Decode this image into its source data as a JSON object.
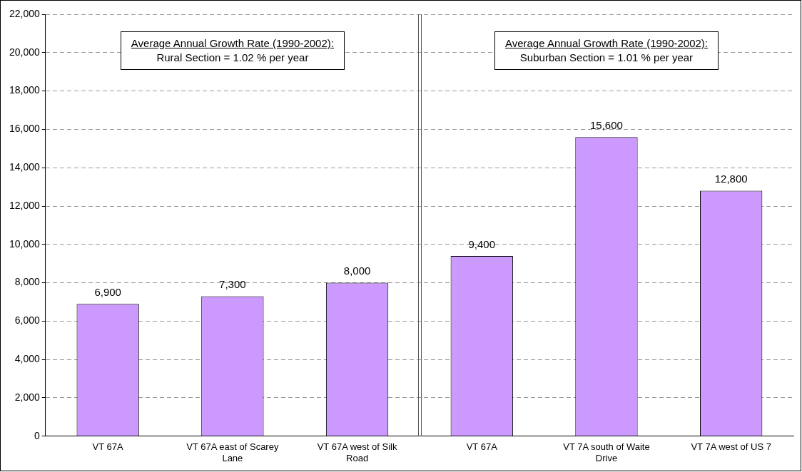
{
  "chart_data": {
    "type": "bar",
    "categories": [
      "VT 67A",
      "VT 67A east of Scarey Lane",
      "VT 67A west of Silk Road",
      "VT 67A",
      "VT 7A south of Waite Drive",
      "VT 7A west of US 7"
    ],
    "values": [
      6900,
      7300,
      8000,
      9400,
      15600,
      12800
    ],
    "value_labels": [
      "6,900",
      "7,300",
      "8,000",
      "9,400",
      "15,600",
      "12,800"
    ],
    "color": "#cc99ff",
    "ylim": [
      0,
      22000
    ],
    "yticks": [
      0,
      {
        "value": 2000,
        "label": "2,000"
      },
      {
        "value": 4000,
        "label": "4,000"
      },
      {
        "value": 6000,
        "label": "6,000"
      },
      {
        "value": 8000,
        "label": "8,000"
      },
      {
        "value": 10000,
        "label": "10,000"
      },
      {
        "value": 12000,
        "label": "12,000"
      },
      {
        "value": 14000,
        "label": "14,000"
      },
      {
        "value": 16000,
        "label": "16,000"
      },
      {
        "value": 18000,
        "label": "18,000"
      },
      {
        "value": 20000,
        "label": "20,000"
      },
      {
        "value": 22000,
        "label": "22,000"
      }
    ],
    "grid": "y",
    "annotations": [
      "Average Annual Growth Rate (1990-2002):\nRural Section = 1.02 % per year",
      "Average Annual Growth Rate (1990-2002):\nSuburban Section = 1.01 % per year"
    ]
  }
}
